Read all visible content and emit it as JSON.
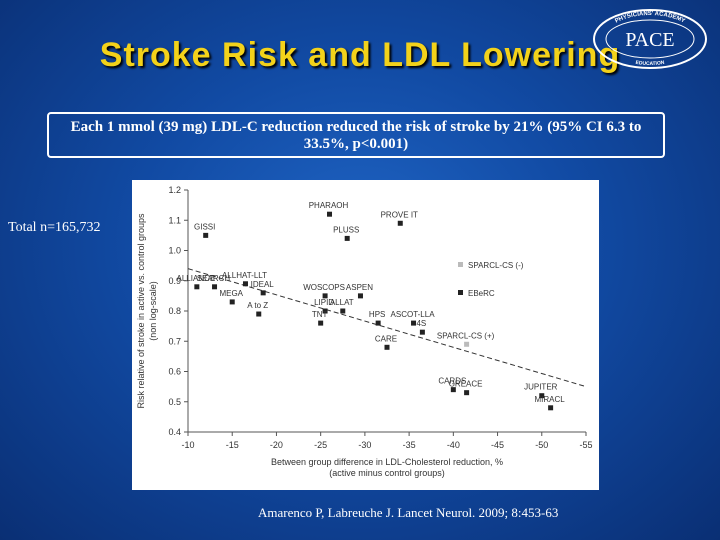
{
  "slide": {
    "title": "Stroke Risk and LDL Lowering",
    "finding": "Each 1 mmol (39 mg) LDL-C reduction reduced the risk of stroke by 21% (95% CI 6.3 to 33.5%, p<0.001)",
    "total": "Total n=165,732",
    "citation": "Amarenco P, Labreuche J. Lancet Neurol. 2009; 8:453-63"
  },
  "logo": {
    "top_text": "PHYSICIANS' ACADEMY",
    "main_text": "PACE",
    "bottom_text": "EDUCATION",
    "color": "#ffffff"
  },
  "colors": {
    "gold_title": "#f3d21a",
    "background": "#114aa3",
    "marker_dark": "#222222",
    "marker_light": "#bbbbbb"
  },
  "chart_data": {
    "type": "scatter",
    "xlabel": [
      "Between group difference in LDL-Cholesterol reduction, %",
      "(active minus control groups)"
    ],
    "ylabel": [
      "Risk relative of stroke in active vs. control groups",
      "(non log-scale)"
    ],
    "xlim": [
      -10,
      -55
    ],
    "ylim": [
      0.4,
      1.2
    ],
    "xticks": [
      -10,
      -15,
      -20,
      -25,
      -30,
      -35,
      -40,
      -45,
      -50,
      -55
    ],
    "yticks": [
      0.4,
      0.5,
      0.6,
      0.7,
      0.8,
      0.9,
      1.0,
      1.1,
      1.2
    ],
    "points": [
      {
        "label": "GISSI",
        "x": -12,
        "y": 1.05,
        "group": "dark"
      },
      {
        "label": "PHARAOH",
        "x": -26,
        "y": 1.12,
        "group": "dark"
      },
      {
        "label": "PROVE IT",
        "x": -34,
        "y": 1.09,
        "group": "dark"
      },
      {
        "label": "PLUSS",
        "x": -28,
        "y": 1.04,
        "group": "dark"
      },
      {
        "label": "SEARCH",
        "x": -13,
        "y": 0.88,
        "group": "dark"
      },
      {
        "label": "ALLHAT-LLT",
        "x": -16.5,
        "y": 0.89,
        "group": "dark"
      },
      {
        "label": "IDEAL",
        "x": -18.5,
        "y": 0.86,
        "group": "dark"
      },
      {
        "label": "WOSCOPS",
        "x": -25.5,
        "y": 0.85,
        "group": "dark"
      },
      {
        "label": "ASPEN",
        "x": -29.5,
        "y": 0.85,
        "group": "dark"
      },
      {
        "label": "ALLIANCE",
        "x": -11,
        "y": 0.88,
        "group": "dark"
      },
      {
        "label": "LIPID",
        "x": -25.5,
        "y": 0.8,
        "group": "dark"
      },
      {
        "label": "ALLAT",
        "x": -27.5,
        "y": 0.8,
        "group": "dark"
      },
      {
        "label": "MEGA",
        "x": -15,
        "y": 0.83,
        "group": "dark"
      },
      {
        "label": "A to Z",
        "x": -18,
        "y": 0.79,
        "group": "dark"
      },
      {
        "label": "TNT",
        "x": -25,
        "y": 0.76,
        "group": "dark"
      },
      {
        "label": "HPS",
        "x": -31.5,
        "y": 0.76,
        "group": "dark"
      },
      {
        "label": "ASCOT-LLA",
        "x": -35.5,
        "y": 0.76,
        "group": "dark"
      },
      {
        "label": "4S",
        "x": -36.5,
        "y": 0.73,
        "group": "dark"
      },
      {
        "label": "CARE",
        "x": -32.5,
        "y": 0.68,
        "group": "dark"
      },
      {
        "label": "CARDS",
        "x": -40,
        "y": 0.54,
        "group": "dark"
      },
      {
        "label": "GREACE",
        "x": -41.5,
        "y": 0.53,
        "group": "dark"
      },
      {
        "label": "JUPITER",
        "x": -50,
        "y": 0.52,
        "group": "dark"
      },
      {
        "label": "MIRACL",
        "x": -51,
        "y": 0.48,
        "group": "dark"
      },
      {
        "label": "SPARCL-CS (+)",
        "x": -41.5,
        "y": 0.69,
        "group": "light"
      }
    ],
    "trendline": {
      "style": "dashed",
      "x": [
        -10,
        -55
      ],
      "y": [
        0.94,
        0.55
      ]
    },
    "legend": {
      "position": "right",
      "entries": [
        {
          "label": "SPARCL-CS (-)",
          "marker": "light"
        },
        {
          "label": "EBeRC",
          "marker": "dark"
        }
      ]
    }
  }
}
